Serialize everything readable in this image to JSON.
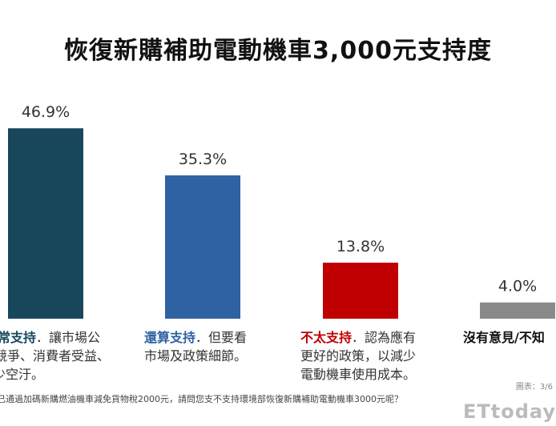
{
  "chart_data": {
    "type": "bar",
    "title": "恢復新購補助電動機車3,000元支持度",
    "categories": [
      "非常支持",
      "還算支持",
      "不太支持",
      "沒有意見/不知道"
    ],
    "values": [
      46.9,
      35.3,
      13.8,
      4.0
    ],
    "value_labels": [
      "46.9%",
      "35.3%",
      "13.8%",
      "4.0%"
    ],
    "colors": [
      "#18475c",
      "#2e62a3",
      "#c00000",
      "#8a8a8a"
    ],
    "ylim": [
      0,
      50
    ],
    "xlabel": "",
    "ylabel": "",
    "captions": [
      {
        "head": "常支持",
        "head_color": "#18475c",
        "lines": [
          "．讓市場公",
          "競爭、消費者受益、",
          "少空汙。"
        ]
      },
      {
        "head": "還算支持",
        "head_color": "#2e62a3",
        "lines": [
          "．但要看",
          "市場及政策細節。"
        ]
      },
      {
        "head": "不太支持",
        "head_color": "#c00000",
        "lines": [
          "．認為應有",
          "更好的政策，以減少",
          "電動機車使用成本。"
        ]
      },
      {
        "head": "沒有意見/不知",
        "head_color": "#111111",
        "lines": [
          ""
        ]
      }
    ]
  },
  "footer": "已通過加碼新購燃油機車減免貨物稅2000元，請問您支不支持環境部恢復新購補助電動機車3000元呢？",
  "watermark": "ETtoday",
  "watermark_sub": "圖表：3/6"
}
